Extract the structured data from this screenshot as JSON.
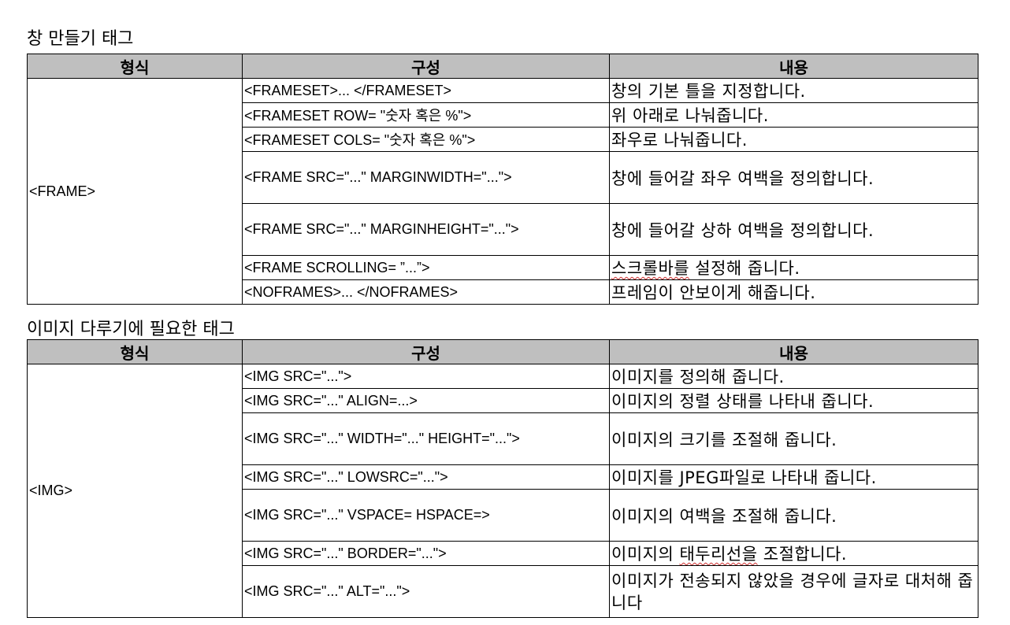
{
  "section1": {
    "title": "창 만들기 태그",
    "headers": [
      "형식",
      "구성",
      "내용"
    ],
    "format": "<FRAME>",
    "rows": [
      {
        "config": "<FRAMESET>... </FRAMESET>",
        "desc": "창의 기본 틀을 지정합니다."
      },
      {
        "config": "<FRAMESET ROW= \"숫자 혹은 %\">",
        "desc": "위 아래로 나눠줍니다."
      },
      {
        "config": "<FRAMESET COLS= \"숫자 혹은 %\">",
        "desc": "좌우로 나눠줍니다."
      },
      {
        "config": "<FRAME SRC=\"...\" MARGINWIDTH=\"...\">",
        "desc": "창에 들어갈 좌우 여백을 정의합니다."
      },
      {
        "config": "<FRAME SRC=\"...\" MARGINHEIGHT=\"...\">",
        "desc": "창에 들어갈 상하 여백을 정의합니다."
      },
      {
        "config": "<FRAME SCROLLING= ”...”>",
        "desc_a": "스크롤바를",
        "desc_b": " 설정해 줍니다."
      },
      {
        "config": "<NOFRAMES>... </NOFRAMES>",
        "desc": "프레임이 안보이게 해줍니다."
      }
    ]
  },
  "section2": {
    "title": "이미지 다루기에 필요한 태그",
    "headers": [
      "형식",
      "구성",
      "내용"
    ],
    "format": "<IMG>",
    "rows": [
      {
        "config": "<IMG SRC=\"...\">",
        "desc": "이미지를 정의해 줍니다."
      },
      {
        "config": "<IMG SRC=\"...\" ALIGN=...>",
        "desc": "이미지의 정렬 상태를 나타내 줍니다."
      },
      {
        "config": "<IMG SRC=\"...\" WIDTH=\"...\" HEIGHT=\"...\">",
        "desc": "이미지의 크기를 조절해 줍니다."
      },
      {
        "config": "<IMG SRC=\"...\" LOWSRC=\"...\">",
        "desc": "이미지를 JPEG파일로 나타내 줍니다."
      },
      {
        "config": "<IMG SRC=\"...\" VSPACE= HSPACE=>",
        "desc": "이미지의 여백을 조절해 줍니다."
      },
      {
        "config": "<IMG SRC=\"...\" BORDER=\"...\">",
        "desc_a": "이미지의 ",
        "desc_b": "태두리선을",
        "desc_c": " 조절합니다."
      },
      {
        "config": "<IMG SRC=\"...\" ALT=\"...\">",
        "desc": "이미지가 전송되지 않았을 경우에 글자로 대처해 줍니다"
      }
    ]
  }
}
